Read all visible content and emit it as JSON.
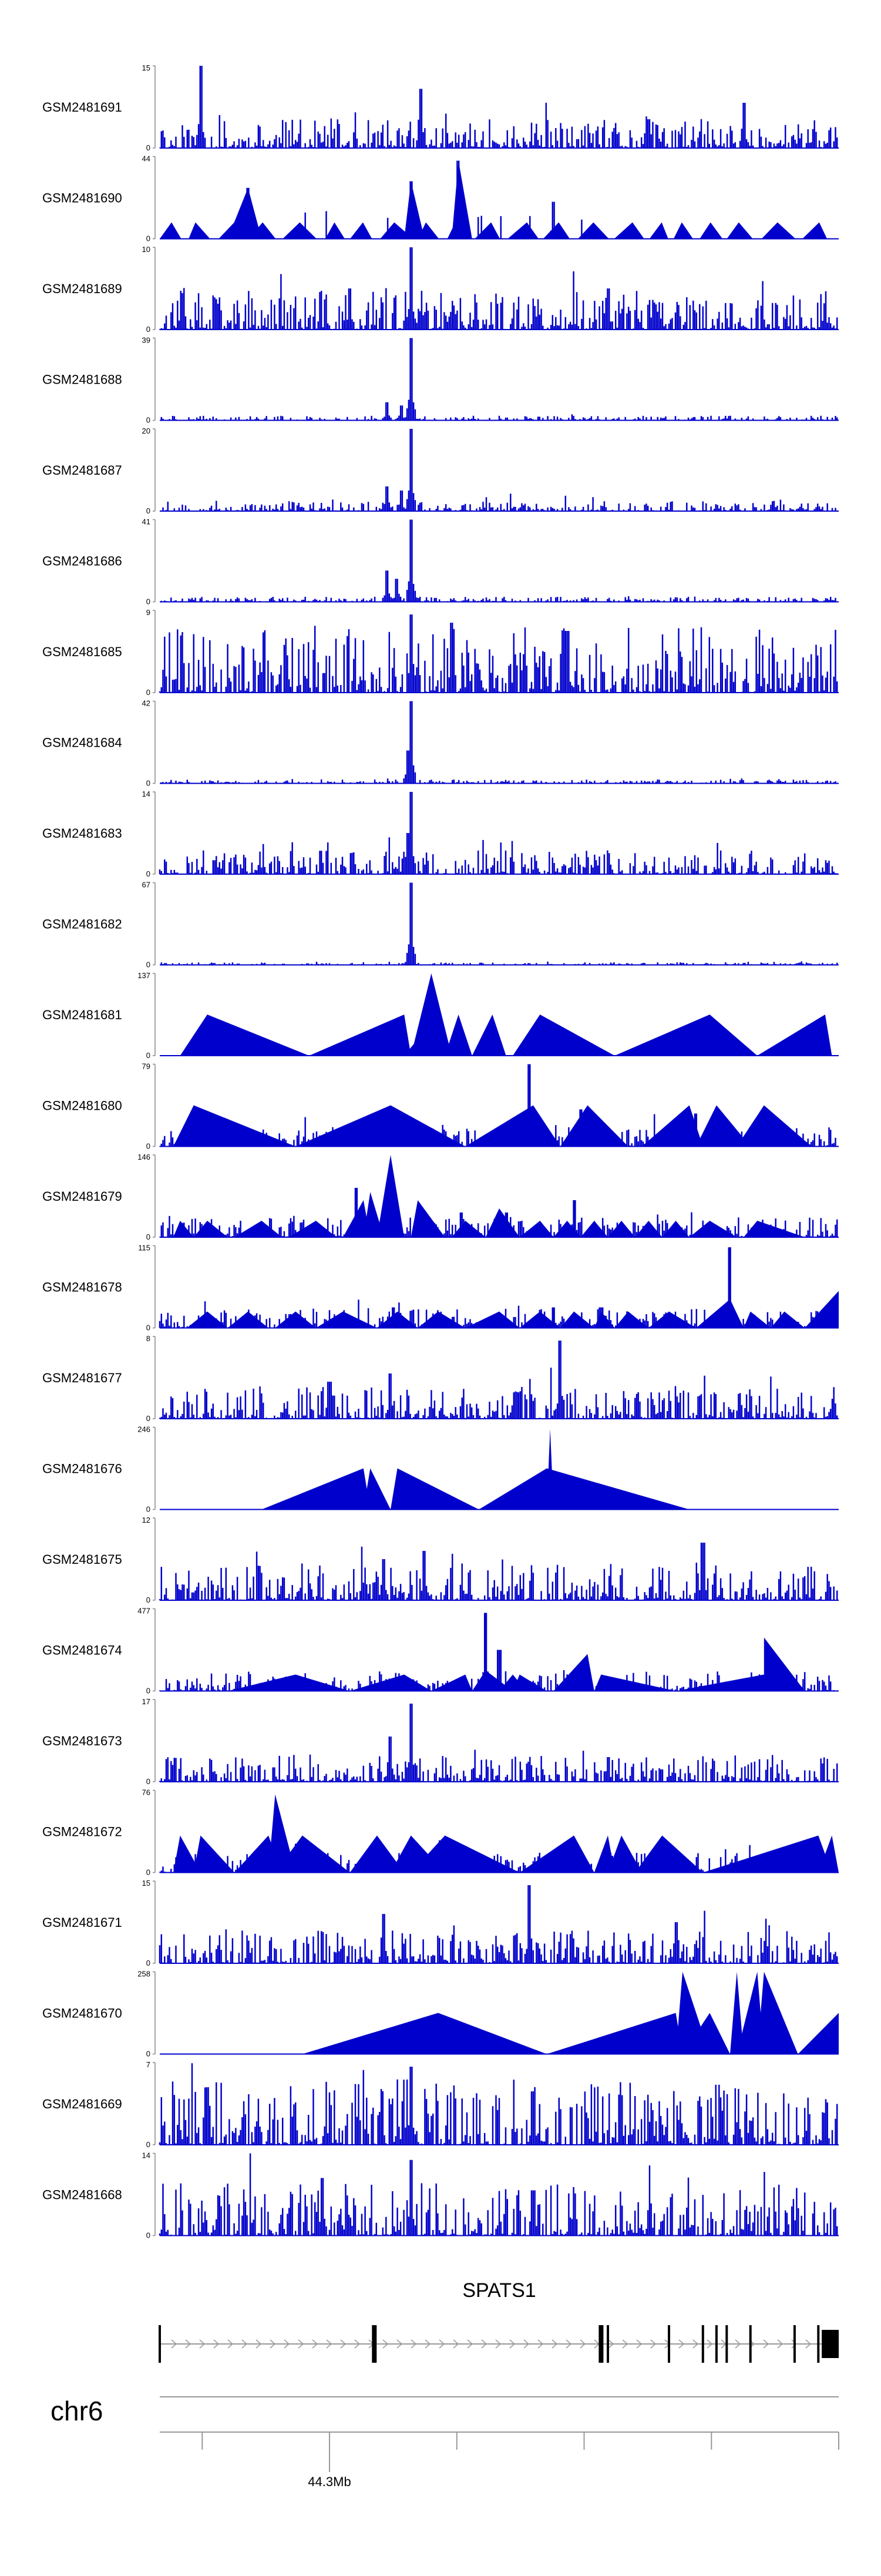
{
  "chart_data": {
    "type": "area",
    "title": "",
    "color": "#0000cc",
    "tracks": [
      {
        "label": "GSM2481691",
        "ymax": "15",
        "ymin": "0",
        "style": "noise",
        "seed": 11,
        "noiseLevel": 0.22,
        "peaks": [
          [
            0.06,
            1.0
          ],
          [
            0.385,
            0.72
          ],
          [
            0.86,
            0.55
          ],
          [
            0.72,
            0.35
          ]
        ]
      },
      {
        "label": "GSM2481690",
        "ymax": "44",
        "ymin": "0",
        "style": "mixed",
        "seed": 23,
        "noiseLevel": 0.0,
        "peaks": [
          [
            0.44,
            0.95
          ],
          [
            0.37,
            0.7
          ],
          [
            0.13,
            0.62
          ],
          [
            0.58,
            0.45
          ]
        ]
      },
      {
        "label": "GSM2481689",
        "ymax": "10",
        "ymin": "0",
        "style": "noise",
        "seed": 37,
        "noiseLevel": 0.3,
        "peaks": [
          [
            0.37,
            1.0
          ],
          [
            0.28,
            0.5
          ],
          [
            0.66,
            0.5
          ]
        ]
      },
      {
        "label": "GSM2481688",
        "ymax": "39",
        "ymin": "0",
        "style": "noise",
        "seed": 41,
        "noiseLevel": 0.035,
        "peaks": [
          [
            0.37,
            1.0
          ],
          [
            0.335,
            0.22
          ],
          [
            0.355,
            0.18
          ]
        ]
      },
      {
        "label": "GSM2481687",
        "ymax": "20",
        "ymin": "0",
        "style": "noise",
        "seed": 53,
        "noiseLevel": 0.08,
        "peaks": [
          [
            0.37,
            1.0
          ],
          [
            0.335,
            0.3
          ],
          [
            0.355,
            0.25
          ]
        ]
      },
      {
        "label": "GSM2481686",
        "ymax": "41",
        "ymin": "0",
        "style": "noise",
        "seed": 61,
        "noiseLevel": 0.04,
        "peaks": [
          [
            0.37,
            1.0
          ],
          [
            0.335,
            0.38
          ],
          [
            0.35,
            0.28
          ]
        ]
      },
      {
        "label": "GSM2481685",
        "ymax": "9",
        "ymin": "0",
        "style": "noise",
        "seed": 71,
        "noiseLevel": 0.5,
        "peaks": [
          [
            0.37,
            0.95
          ],
          [
            0.43,
            0.85
          ],
          [
            0.6,
            0.75
          ]
        ]
      },
      {
        "label": "GSM2481684",
        "ymax": "42",
        "ymin": "0",
        "style": "noise",
        "seed": 83,
        "noiseLevel": 0.03,
        "peaks": [
          [
            0.37,
            1.0
          ],
          [
            0.365,
            0.4
          ]
        ]
      },
      {
        "label": "GSM2481683",
        "ymax": "14",
        "ymin": "0",
        "style": "noise",
        "seed": 97,
        "noiseLevel": 0.18,
        "peaks": [
          [
            0.37,
            1.0
          ],
          [
            0.365,
            0.5
          ]
        ]
      },
      {
        "label": "GSM2481682",
        "ymax": "67",
        "ymin": "0",
        "style": "noise",
        "seed": 101,
        "noiseLevel": 0.02,
        "peaks": [
          [
            0.37,
            1.0
          ]
        ]
      },
      {
        "label": "GSM2481681",
        "ymax": "137",
        "ymin": "0",
        "style": "triangles",
        "tri": [
          [
            0.03,
            0.22,
            0.07,
            0.5
          ],
          [
            0.22,
            0.37,
            0.36,
            0.5
          ],
          [
            0.36,
            0.38,
            0.39,
            0.3
          ],
          [
            0.37,
            0.43,
            0.4,
            1.0
          ],
          [
            0.42,
            0.46,
            0.44,
            0.5
          ],
          [
            0.46,
            0.51,
            0.49,
            0.5
          ],
          [
            0.52,
            0.67,
            0.56,
            0.5
          ],
          [
            0.67,
            0.88,
            0.81,
            0.5
          ],
          [
            0.88,
            0.99,
            0.98,
            0.5
          ]
        ]
      },
      {
        "label": "GSM2481680",
        "ymax": "79",
        "ymin": "0",
        "style": "mixed-tri",
        "seed": 131,
        "tri": [
          [
            0.02,
            0.2,
            0.05,
            0.5
          ],
          [
            0.2,
            0.45,
            0.34,
            0.5
          ],
          [
            0.45,
            0.59,
            0.55,
            0.5
          ],
          [
            0.59,
            0.69,
            0.63,
            0.5
          ],
          [
            0.71,
            0.8,
            0.78,
            0.5
          ],
          [
            0.79,
            0.87,
            0.82,
            0.5
          ],
          [
            0.85,
            0.96,
            0.89,
            0.5
          ]
        ],
        "peaks": [
          [
            0.545,
            1.0
          ],
          [
            0.62,
            0.45
          ],
          [
            0.79,
            0.4
          ]
        ]
      },
      {
        "label": "GSM2481679",
        "ymax": "146",
        "ymin": "0",
        "style": "mixed-tri",
        "seed": 149,
        "tri": [
          [
            0.02,
            0.05,
            0.03,
            0.2
          ],
          [
            0.05,
            0.1,
            0.07,
            0.2
          ],
          [
            0.11,
            0.18,
            0.15,
            0.2
          ],
          [
            0.19,
            0.26,
            0.23,
            0.2
          ],
          [
            0.27,
            0.31,
            0.3,
            0.45
          ],
          [
            0.3,
            0.33,
            0.31,
            0.55
          ],
          [
            0.32,
            0.36,
            0.34,
            1.0
          ],
          [
            0.37,
            0.42,
            0.38,
            0.45
          ],
          [
            0.43,
            0.48,
            0.45,
            0.2
          ],
          [
            0.48,
            0.53,
            0.5,
            0.35
          ],
          [
            0.53,
            0.58,
            0.56,
            0.2
          ],
          [
            0.58,
            0.62,
            0.6,
            0.2
          ],
          [
            0.62,
            0.66,
            0.64,
            0.2
          ],
          [
            0.66,
            0.7,
            0.68,
            0.2
          ],
          [
            0.7,
            0.74,
            0.72,
            0.2
          ],
          [
            0.74,
            0.78,
            0.76,
            0.2
          ],
          [
            0.78,
            0.85,
            0.81,
            0.2
          ],
          [
            0.86,
            0.95,
            0.88,
            0.2
          ]
        ],
        "peaks": [
          [
            0.29,
            0.6
          ],
          [
            0.445,
            0.3
          ],
          [
            0.61,
            0.45
          ],
          [
            0.51,
            0.3
          ]
        ]
      },
      {
        "label": "GSM2481678",
        "ymax": "115",
        "ymin": "0",
        "style": "mixed-tri",
        "seed": 163,
        "tri": [
          [
            0.04,
            0.1,
            0.07,
            0.2
          ],
          [
            0.1,
            0.16,
            0.13,
            0.2
          ],
          [
            0.17,
            0.23,
            0.2,
            0.2
          ],
          [
            0.23,
            0.32,
            0.27,
            0.2
          ],
          [
            0.32,
            0.38,
            0.35,
            0.2
          ],
          [
            0.38,
            0.45,
            0.41,
            0.2
          ],
          [
            0.45,
            0.53,
            0.5,
            0.2
          ],
          [
            0.53,
            0.59,
            0.56,
            0.2
          ],
          [
            0.59,
            0.64,
            0.61,
            0.2
          ],
          [
            0.64,
            0.67,
            0.65,
            0.2
          ],
          [
            0.67,
            0.72,
            0.69,
            0.2
          ],
          [
            0.72,
            0.79,
            0.75,
            0.2
          ],
          [
            0.79,
            0.86,
            0.84,
            0.35
          ],
          [
            0.86,
            0.9,
            0.87,
            0.2
          ],
          [
            0.9,
            0.95,
            0.92,
            0.2
          ],
          [
            0.95,
            1.0,
            1.0,
            0.45
          ]
        ],
        "peaks": [
          [
            0.84,
            0.98
          ],
          [
            0.345,
            0.25
          ],
          [
            0.58,
            0.25
          ],
          [
            0.65,
            0.25
          ]
        ]
      },
      {
        "label": "GSM2481677",
        "ymax": "8",
        "ymin": "0",
        "style": "noise",
        "seed": 179,
        "noiseLevel": 0.25,
        "peaks": [
          [
            0.59,
            0.95
          ],
          [
            0.34,
            0.55
          ],
          [
            0.25,
            0.45
          ]
        ]
      },
      {
        "label": "GSM2481676",
        "ymax": "246",
        "ymin": "0",
        "style": "triangles",
        "tri": [
          [
            0.15,
            0.31,
            0.3,
            0.5
          ],
          [
            0.3,
            0.34,
            0.31,
            0.5
          ],
          [
            0.34,
            0.47,
            0.35,
            0.5
          ],
          [
            0.47,
            0.78,
            0.57,
            0.5
          ],
          [
            0.57,
            0.58,
            0.575,
            0.98
          ]
        ]
      },
      {
        "label": "GSM2481675",
        "ymax": "12",
        "ymin": "0",
        "style": "noise",
        "seed": 193,
        "noiseLevel": 0.28,
        "peaks": [
          [
            0.8,
            0.7
          ],
          [
            0.39,
            0.6
          ],
          [
            0.33,
            0.5
          ]
        ]
      },
      {
        "label": "GSM2481674",
        "ymax": "477",
        "ymin": "0",
        "style": "mixed-tri",
        "seed": 211,
        "tri": [
          [
            0.1,
            0.28,
            0.2,
            0.2
          ],
          [
            0.28,
            0.4,
            0.36,
            0.2
          ],
          [
            0.4,
            0.46,
            0.45,
            0.2
          ],
          [
            0.46,
            0.52,
            0.48,
            0.25
          ],
          [
            0.5,
            0.54,
            0.52,
            0.2
          ],
          [
            0.52,
            0.57,
            0.53,
            0.2
          ],
          [
            0.58,
            0.64,
            0.63,
            0.45
          ],
          [
            0.64,
            0.76,
            0.65,
            0.2
          ],
          [
            0.76,
            0.9,
            0.89,
            0.2
          ],
          [
            0.89,
            0.95,
            0.89,
            0.65
          ]
        ],
        "peaks": [
          [
            0.48,
            0.95
          ],
          [
            0.5,
            0.5
          ]
        ]
      },
      {
        "label": "GSM2481673",
        "ymax": "17",
        "ymin": "0",
        "style": "noise",
        "seed": 223,
        "noiseLevel": 0.2,
        "peaks": [
          [
            0.37,
            0.95
          ],
          [
            0.34,
            0.55
          ],
          [
            0.66,
            0.3
          ]
        ]
      },
      {
        "label": "GSM2481672",
        "ymax": "76",
        "ymin": "0",
        "style": "mixed-tri",
        "seed": 239,
        "tri": [
          [
            0.02,
            0.06,
            0.03,
            0.45
          ],
          [
            0.05,
            0.11,
            0.06,
            0.45
          ],
          [
            0.11,
            0.18,
            0.16,
            0.45
          ],
          [
            0.16,
            0.2,
            0.17,
            0.95
          ],
          [
            0.17,
            0.28,
            0.21,
            0.45
          ],
          [
            0.28,
            0.36,
            0.32,
            0.45
          ],
          [
            0.34,
            0.42,
            0.37,
            0.45
          ],
          [
            0.37,
            0.53,
            0.42,
            0.45
          ],
          [
            0.53,
            0.64,
            0.61,
            0.45
          ],
          [
            0.64,
            0.67,
            0.66,
            0.45
          ],
          [
            0.66,
            0.71,
            0.68,
            0.45
          ],
          [
            0.7,
            0.8,
            0.74,
            0.45
          ],
          [
            0.8,
            0.99,
            0.97,
            0.45
          ],
          [
            0.97,
            1.0,
            0.99,
            0.45
          ]
        ],
        "peaks": [
          [
            0.2,
            0.35
          ]
        ]
      },
      {
        "label": "GSM2481671",
        "ymax": "15",
        "ymin": "0",
        "style": "noise",
        "seed": 251,
        "noiseLevel": 0.25,
        "peaks": [
          [
            0.545,
            0.95
          ],
          [
            0.33,
            0.6
          ],
          [
            0.76,
            0.5
          ]
        ]
      },
      {
        "label": "GSM2481670",
        "ymax": "258",
        "ymin": "0",
        "style": "triangles",
        "tri": [
          [
            0.21,
            0.57,
            0.41,
            0.5
          ],
          [
            0.57,
            0.77,
            0.76,
            0.5
          ],
          [
            0.76,
            0.81,
            0.77,
            1.0
          ],
          [
            0.77,
            0.84,
            0.81,
            0.5
          ],
          [
            0.84,
            0.86,
            0.85,
            1.0
          ],
          [
            0.85,
            0.89,
            0.88,
            1.0
          ],
          [
            0.88,
            0.94,
            0.89,
            1.0
          ],
          [
            0.94,
            1.0,
            1.0,
            0.5
          ]
        ]
      },
      {
        "label": "GSM2481669",
        "ymax": "7",
        "ymin": "0",
        "style": "noise",
        "seed": 263,
        "noiseLevel": 0.5,
        "peaks": [
          [
            0.37,
            0.95
          ],
          [
            0.07,
            0.7
          ],
          [
            0.55,
            0.65
          ]
        ]
      },
      {
        "label": "GSM2481668",
        "ymax": "14",
        "ymin": "0",
        "style": "noise",
        "seed": 277,
        "noiseLevel": 0.4,
        "peaks": [
          [
            0.37,
            0.92
          ],
          [
            0.24,
            0.7
          ],
          [
            0.55,
            0.55
          ]
        ]
      }
    ],
    "gene": {
      "name": "SPATS1",
      "exons": [
        0.0,
        0.316,
        0.65,
        0.66,
        0.75,
        0.8,
        0.82,
        0.835,
        0.87,
        0.935,
        0.97
      ],
      "last_exon": [
        0.975,
        1.0
      ]
    },
    "chromosome": "chr6",
    "tick_label": "44.3Mb",
    "tick_label_fraction": 0.25,
    "tick_fractions": [
      0.0625,
      0.25,
      0.4375,
      0.625,
      0.8125,
      1.0
    ]
  }
}
